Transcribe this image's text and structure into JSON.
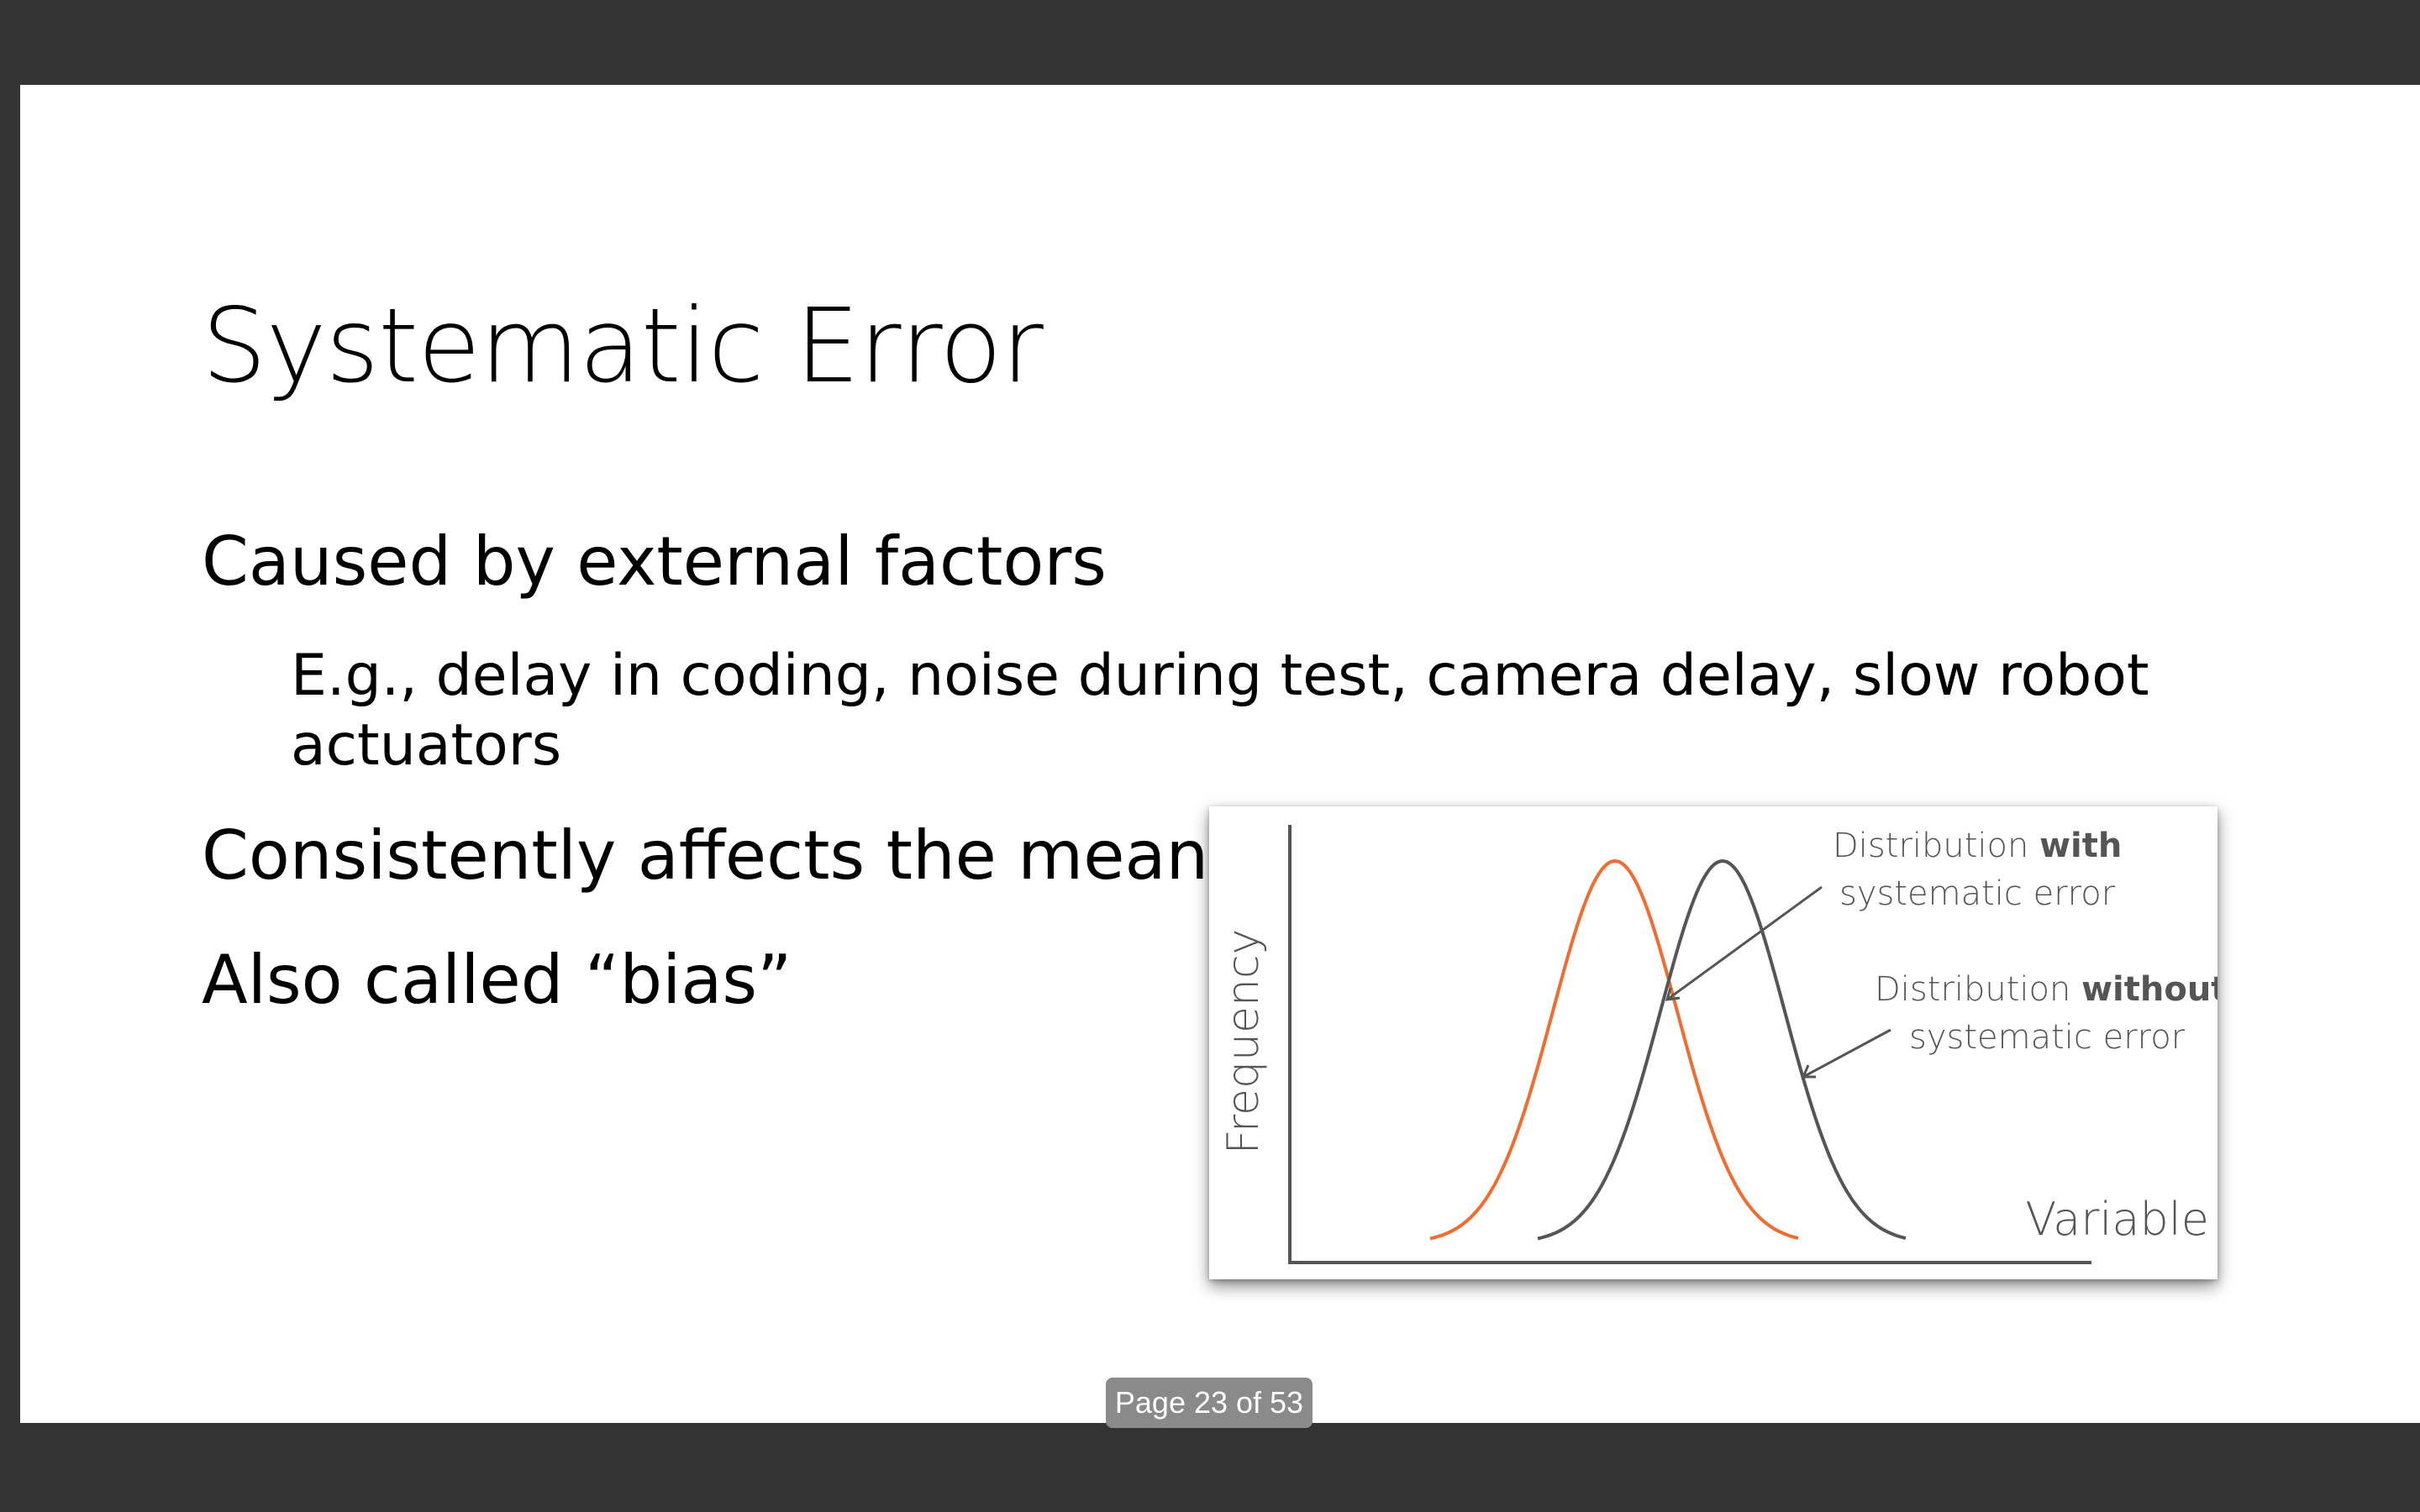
{
  "slide": {
    "title": "Systematic Error",
    "bullets": [
      "Caused by external factors",
      "E.g., delay in coding, noise during test, camera delay, slow robot actuators",
      "Consistently affects the mean (not the variance)",
      "Also called “bias”"
    ]
  },
  "figure": {
    "ylabel": "Frequency",
    "xlabel": "Variable",
    "annotation_with_prefix": "Distribution ",
    "annotation_with_bold": "with",
    "annotation_with_line2": "systematic error",
    "annotation_without_prefix": "Distribution ",
    "annotation_without_bold": "without",
    "annotation_without_line2": "systematic error",
    "colors": {
      "with_error": "#f26b2f",
      "without_error": "#555555",
      "axis": "#555555"
    }
  },
  "viewer": {
    "page_indicator": "Page 23 of 53"
  }
}
